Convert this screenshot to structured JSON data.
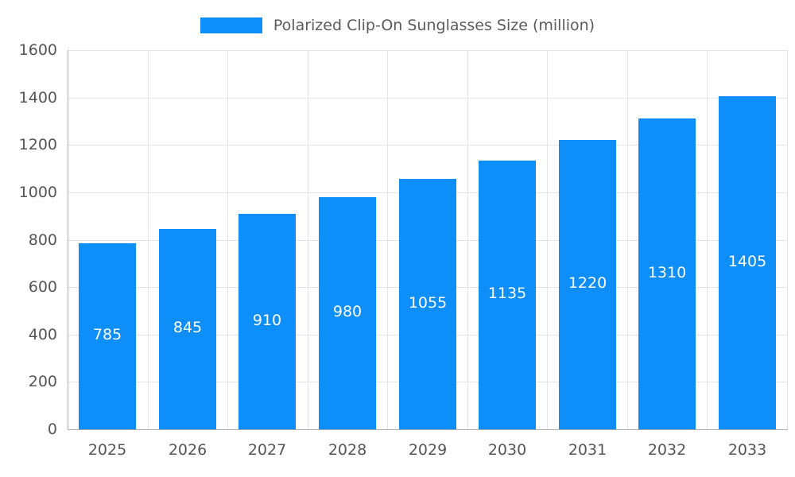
{
  "legend": {
    "label": "Polarized Clip-On Sunglasses Size (million)"
  },
  "colors": {
    "bar": "#0d8ef8",
    "value_label": "#ffffff",
    "axis_text": "#555555",
    "grid": "#e4e4e4",
    "axis_line": "#adadad",
    "background": "#ffffff"
  },
  "chart_data": {
    "type": "bar",
    "title": "Polarized Clip-On Sunglasses Size (million)",
    "categories": [
      "2025",
      "2026",
      "2027",
      "2028",
      "2029",
      "2030",
      "2031",
      "2032",
      "2033"
    ],
    "values": [
      785,
      845,
      910,
      980,
      1055,
      1135,
      1220,
      1310,
      1405
    ],
    "xlabel": "",
    "ylabel": "",
    "ylim": [
      0,
      1600
    ],
    "ytick_step": 200,
    "ytick_labels": [
      "0",
      "200",
      "400",
      "600",
      "800",
      "1000",
      "1200",
      "1400",
      "1600"
    ],
    "grid": true,
    "legend_position": "top",
    "value_labels_position": "inside-center",
    "bar_color": "#0d8ef8",
    "value_label_color": "#ffffff"
  }
}
